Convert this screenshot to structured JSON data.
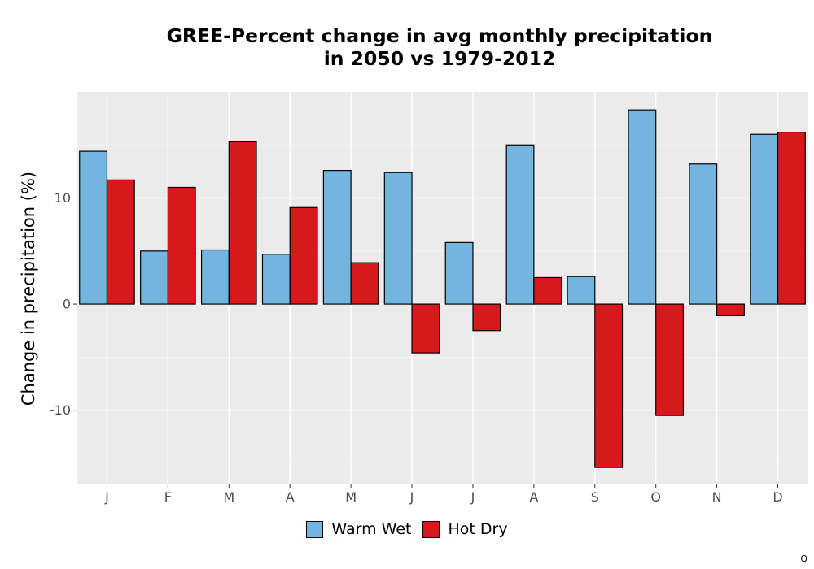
{
  "chart_data": {
    "type": "bar",
    "title_line1": "GREE-Percent change in avg monthly precipitation",
    "title_line2": "in 2050 vs 1979-2012",
    "xlabel": "",
    "ylabel": "Change in precipitation (%)",
    "categories": [
      "J",
      "F",
      "M",
      "A",
      "M",
      "J",
      "J",
      "A",
      "S",
      "O",
      "N",
      "D"
    ],
    "series": [
      {
        "name": "Warm Wet",
        "color": "#74b5e0",
        "values": [
          14.4,
          5.0,
          5.1,
          4.7,
          12.6,
          12.4,
          5.8,
          15.0,
          2.6,
          18.3,
          13.2,
          16.0
        ]
      },
      {
        "name": "Hot Dry",
        "color": "#d7191c",
        "values": [
          11.7,
          11.0,
          15.3,
          9.1,
          3.9,
          -4.6,
          -2.5,
          2.5,
          -15.4,
          -10.5,
          -1.1,
          16.2
        ]
      }
    ],
    "ylim": [
      -17,
      20
    ],
    "yticks": [
      -10,
      0,
      10
    ],
    "ytick_labels": [
      "-10",
      "0",
      "10"
    ],
    "grid": true,
    "legend_position": "bottom"
  },
  "corner_mark": "Q"
}
